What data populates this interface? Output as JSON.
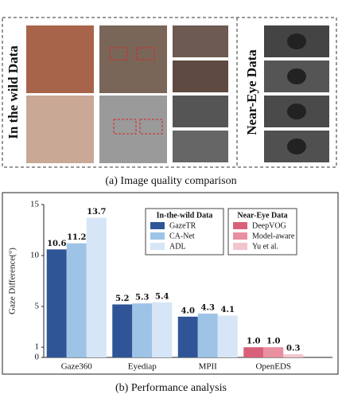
{
  "top_panel": {
    "left_label": "In the wild Data",
    "right_label": "Near-Eye Data",
    "caption": "(a)  Image quality comparison"
  },
  "chart_data": {
    "type": "bar",
    "caption": "(b)  Performance analysis",
    "y_label": "Gaze Difference(°)",
    "categories": [
      "Gaze360",
      "Eyediap",
      "MPII",
      "OpenEDS"
    ],
    "ylim": [
      0,
      15
    ],
    "yticks": [
      0,
      1,
      5,
      10,
      15
    ],
    "grid": false,
    "series_groups": [
      {
        "title": "In-the-wild Data",
        "series": [
          {
            "name": "GazeTR",
            "color": "#2f5597",
            "values": [
              10.6,
              5.2,
              4.0,
              null
            ],
            "value_labels": [
              "10.6",
              "5.2",
              "4.0",
              null
            ]
          },
          {
            "name": "CA-Net",
            "color": "#9dc3e6",
            "values": [
              11.2,
              5.3,
              4.3,
              null
            ],
            "value_labels": [
              "11.2",
              "5.3",
              "4.3",
              null
            ]
          },
          {
            "name": "ADL",
            "color": "#d6e6f7",
            "values": [
              13.7,
              5.4,
              4.1,
              null
            ],
            "value_labels": [
              "13.7",
              "5.4",
              "4.1",
              null
            ]
          }
        ]
      },
      {
        "title": "Near-Eye Data",
        "series": [
          {
            "name": "DeepVOG",
            "color": "#d9607a",
            "values": [
              null,
              null,
              null,
              1.0
            ],
            "value_labels": [
              null,
              null,
              null,
              "1.0"
            ]
          },
          {
            "name": "Model-aware",
            "color": "#e88fa0",
            "values": [
              null,
              null,
              null,
              1.0
            ],
            "value_labels": [
              null,
              null,
              null,
              "1.0"
            ]
          },
          {
            "name": "Yu et al.",
            "color": "#f2c4cc",
            "values": [
              null,
              null,
              null,
              0.3
            ],
            "value_labels": [
              null,
              null,
              null,
              "0.3"
            ]
          }
        ]
      }
    ]
  }
}
